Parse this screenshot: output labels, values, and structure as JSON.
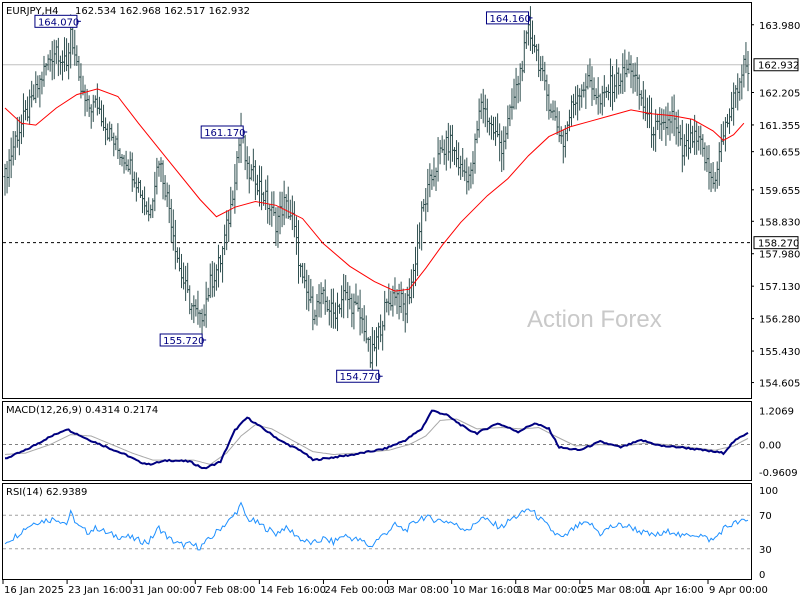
{
  "header": {
    "symbol": "EURJPY,H4",
    "ohlc": "162.534 162.968 162.517 162.932"
  },
  "watermark": "Action Forex",
  "chart_data": [
    {
      "type": "ohlc",
      "name": "price",
      "x_tick_labels": [
        "16 Jan 2025",
        "23 Jan 16:00",
        "31 Jan 00:00",
        "7 Feb 08:00",
        "14 Feb 16:00",
        "24 Feb 00:00",
        "3 Mar 08:00",
        "10 Mar 16:00",
        "18 Mar 00:00",
        "25 Mar 08:00",
        "1 Apr 16:00",
        "9 Apr 00:00"
      ],
      "y_ticks": [
        "163.980",
        "162.205",
        "161.355",
        "160.655",
        "159.655",
        "158.830",
        "157.980",
        "157.130",
        "156.280",
        "155.430",
        "154.605"
      ],
      "ylim": [
        154.2,
        164.55
      ],
      "current_price": "162.932",
      "reference_level": "158.270",
      "ma_path": [
        [
          0,
          161.8
        ],
        [
          8,
          161.4
        ],
        [
          15,
          161.35
        ],
        [
          25,
          161.8
        ],
        [
          35,
          162.15
        ],
        [
          45,
          162.3
        ],
        [
          55,
          162.1
        ],
        [
          65,
          161.4
        ],
        [
          80,
          160.4
        ],
        [
          95,
          159.4
        ],
        [
          103,
          158.95
        ],
        [
          112,
          159.2
        ],
        [
          122,
          159.35
        ],
        [
          132,
          159.25
        ],
        [
          145,
          158.9
        ],
        [
          155,
          158.25
        ],
        [
          168,
          157.65
        ],
        [
          180,
          157.25
        ],
        [
          190,
          157.0
        ],
        [
          197,
          157.05
        ],
        [
          205,
          157.6
        ],
        [
          213,
          158.2
        ],
        [
          222,
          158.8
        ],
        [
          235,
          159.5
        ],
        [
          245,
          159.95
        ],
        [
          255,
          160.55
        ],
        [
          265,
          161.05
        ],
        [
          275,
          161.3
        ],
        [
          285,
          161.45
        ],
        [
          295,
          161.6
        ],
        [
          305,
          161.75
        ],
        [
          315,
          161.65
        ],
        [
          325,
          161.6
        ],
        [
          335,
          161.5
        ],
        [
          345,
          161.2
        ],
        [
          350,
          160.95
        ],
        [
          355,
          161.1
        ],
        [
          360,
          161.4
        ]
      ],
      "bar_anchors": [
        [
          0,
          160.0
        ],
        [
          5,
          161.0
        ],
        [
          10,
          161.6
        ],
        [
          15,
          162.2
        ],
        [
          20,
          162.9
        ],
        [
          25,
          163.4
        ],
        [
          30,
          162.8
        ],
        [
          32,
          163.9
        ],
        [
          36,
          162.4
        ],
        [
          40,
          161.8
        ],
        [
          45,
          161.9
        ],
        [
          50,
          161.2
        ],
        [
          55,
          160.7
        ],
        [
          60,
          160.4
        ],
        [
          65,
          159.8
        ],
        [
          70,
          159.0
        ],
        [
          75,
          160.5
        ],
        [
          80,
          159.2
        ],
        [
          85,
          157.6
        ],
        [
          90,
          156.7
        ],
        [
          95,
          156.2
        ],
        [
          100,
          157.2
        ],
        [
          105,
          157.8
        ],
        [
          110,
          159.2
        ],
        [
          113,
          160.5
        ],
        [
          115,
          161.2
        ],
        [
          118,
          160.1
        ],
        [
          122,
          160.0
        ],
        [
          127,
          159.4
        ],
        [
          132,
          158.8
        ],
        [
          136,
          159.3
        ],
        [
          140,
          158.9
        ],
        [
          145,
          157.2
        ],
        [
          150,
          156.5
        ],
        [
          155,
          156.8
        ],
        [
          160,
          156.4
        ],
        [
          165,
          156.9
        ],
        [
          170,
          156.6
        ],
        [
          175,
          156.1
        ],
        [
          178,
          155.2
        ],
        [
          181,
          155.7
        ],
        [
          185,
          156.5
        ],
        [
          190,
          157.0
        ],
        [
          195,
          156.5
        ],
        [
          199,
          157.5
        ],
        [
          203,
          159.0
        ],
        [
          207,
          159.8
        ],
        [
          212,
          160.6
        ],
        [
          217,
          160.9
        ],
        [
          222,
          160.2
        ],
        [
          227,
          160.0
        ],
        [
          232,
          162.0
        ],
        [
          237,
          161.3
        ],
        [
          242,
          160.8
        ],
        [
          247,
          161.8
        ],
        [
          252,
          163.0
        ],
        [
          255,
          163.8
        ],
        [
          258,
          163.5
        ],
        [
          263,
          162.3
        ],
        [
          268,
          161.5
        ],
        [
          272,
          160.9
        ],
        [
          276,
          161.8
        ],
        [
          280,
          162.3
        ],
        [
          285,
          162.5
        ],
        [
          290,
          161.9
        ],
        [
          295,
          162.4
        ],
        [
          300,
          162.6
        ],
        [
          305,
          162.9
        ],
        [
          310,
          162.0
        ],
        [
          315,
          161.3
        ],
        [
          320,
          161.2
        ],
        [
          325,
          161.6
        ],
        [
          330,
          160.6
        ],
        [
          335,
          161.0
        ],
        [
          339,
          160.8
        ],
        [
          342,
          160.3
        ],
        [
          345,
          159.8
        ],
        [
          350,
          161.1
        ],
        [
          355,
          162.0
        ],
        [
          360,
          162.9
        ]
      ],
      "pivot_labels": [
        {
          "x": 37,
          "price": 164.07,
          "text": "164.070",
          "side": "left",
          "pos": "high"
        },
        {
          "x": 257,
          "price": 164.16,
          "text": "164.160",
          "side": "left",
          "pos": "high"
        },
        {
          "x": 118,
          "price": 161.17,
          "text": "161.170",
          "side": "left",
          "pos": "high"
        },
        {
          "x": 98,
          "price": 155.72,
          "text": "155.720",
          "side": "left",
          "pos": "low"
        },
        {
          "x": 184,
          "price": 154.77,
          "text": "154.770",
          "side": "left",
          "pos": "low"
        }
      ],
      "colors": {
        "bars": "#2f4f4f",
        "ma": "#ff0000",
        "grid": "#c0c0c0"
      }
    },
    {
      "type": "line",
      "name": "macd",
      "label": "MACD(12,26,9) 0.4314 0.2174",
      "y_ticks": [
        "1.2069",
        "0.00",
        "-0.9609"
      ],
      "ylim": [
        -1.25,
        1.5
      ],
      "main_anchors": [
        [
          0,
          -0.5
        ],
        [
          10,
          -0.2
        ],
        [
          20,
          0.2
        ],
        [
          30,
          0.55
        ],
        [
          40,
          0.2
        ],
        [
          50,
          -0.1
        ],
        [
          60,
          -0.4
        ],
        [
          65,
          -0.6
        ],
        [
          70,
          -0.7
        ],
        [
          80,
          -0.55
        ],
        [
          90,
          -0.6
        ],
        [
          97,
          -0.85
        ],
        [
          105,
          -0.6
        ],
        [
          112,
          0.5
        ],
        [
          118,
          0.95
        ],
        [
          125,
          0.6
        ],
        [
          135,
          0.1
        ],
        [
          145,
          -0.25
        ],
        [
          150,
          -0.55
        ],
        [
          160,
          -0.45
        ],
        [
          170,
          -0.35
        ],
        [
          185,
          -0.15
        ],
        [
          195,
          0.15
        ],
        [
          203,
          0.55
        ],
        [
          208,
          1.2
        ],
        [
          215,
          1.05
        ],
        [
          225,
          0.55
        ],
        [
          230,
          0.4
        ],
        [
          240,
          0.75
        ],
        [
          250,
          0.45
        ],
        [
          258,
          0.75
        ],
        [
          265,
          0.55
        ],
        [
          270,
          -0.1
        ],
        [
          280,
          -0.2
        ],
        [
          290,
          0.1
        ],
        [
          300,
          -0.1
        ],
        [
          310,
          0.15
        ],
        [
          320,
          -0.05
        ],
        [
          330,
          -0.1
        ],
        [
          340,
          -0.2
        ],
        [
          350,
          -0.3
        ],
        [
          355,
          0.1
        ],
        [
          362,
          0.4314
        ]
      ],
      "signal_anchors": [
        [
          0,
          -0.35
        ],
        [
          10,
          -0.3
        ],
        [
          22,
          0.0
        ],
        [
          32,
          0.35
        ],
        [
          42,
          0.3
        ],
        [
          52,
          0.0
        ],
        [
          62,
          -0.3
        ],
        [
          72,
          -0.55
        ],
        [
          82,
          -0.55
        ],
        [
          92,
          -0.55
        ],
        [
          100,
          -0.7
        ],
        [
          108,
          -0.3
        ],
        [
          115,
          0.3
        ],
        [
          122,
          0.7
        ],
        [
          130,
          0.55
        ],
        [
          140,
          0.15
        ],
        [
          150,
          -0.25
        ],
        [
          160,
          -0.35
        ],
        [
          172,
          -0.3
        ],
        [
          187,
          -0.2
        ],
        [
          197,
          0.0
        ],
        [
          205,
          0.3
        ],
        [
          212,
          0.85
        ],
        [
          220,
          0.9
        ],
        [
          230,
          0.55
        ],
        [
          242,
          0.6
        ],
        [
          252,
          0.55
        ],
        [
          260,
          0.6
        ],
        [
          268,
          0.3
        ],
        [
          278,
          -0.05
        ],
        [
          290,
          0.0
        ],
        [
          302,
          -0.05
        ],
        [
          312,
          0.05
        ],
        [
          322,
          0.0
        ],
        [
          334,
          -0.1
        ],
        [
          346,
          -0.2
        ],
        [
          355,
          -0.05
        ],
        [
          362,
          0.2174
        ]
      ],
      "colors": {
        "main": "#000080",
        "signal": "#a9a9a9"
      }
    },
    {
      "type": "line",
      "name": "rsi",
      "label": "RSI(14) 62.9389",
      "y_ticks": [
        "100",
        "70",
        "30",
        "0"
      ],
      "ylim": [
        0,
        100
      ],
      "levels": [
        70,
        30
      ],
      "anchors": [
        [
          0,
          38
        ],
        [
          5,
          45
        ],
        [
          10,
          55
        ],
        [
          15,
          62
        ],
        [
          20,
          64
        ],
        [
          25,
          66
        ],
        [
          30,
          60
        ],
        [
          32,
          72
        ],
        [
          36,
          56
        ],
        [
          40,
          50
        ],
        [
          45,
          55
        ],
        [
          50,
          48
        ],
        [
          55,
          45
        ],
        [
          60,
          44
        ],
        [
          65,
          40
        ],
        [
          70,
          38
        ],
        [
          75,
          55
        ],
        [
          80,
          42
        ],
        [
          85,
          35
        ],
        [
          90,
          35
        ],
        [
          95,
          32
        ],
        [
          100,
          42
        ],
        [
          105,
          55
        ],
        [
          110,
          65
        ],
        [
          113,
          75
        ],
        [
          115,
          82
        ],
        [
          118,
          66
        ],
        [
          122,
          62
        ],
        [
          127,
          55
        ],
        [
          132,
          48
        ],
        [
          136,
          55
        ],
        [
          140,
          50
        ],
        [
          145,
          40
        ],
        [
          150,
          36
        ],
        [
          155,
          42
        ],
        [
          160,
          38
        ],
        [
          165,
          46
        ],
        [
          170,
          42
        ],
        [
          175,
          38
        ],
        [
          178,
          32
        ],
        [
          181,
          40
        ],
        [
          185,
          48
        ],
        [
          190,
          58
        ],
        [
          195,
          52
        ],
        [
          199,
          60
        ],
        [
          203,
          68
        ],
        [
          207,
          66
        ],
        [
          212,
          64
        ],
        [
          217,
          62
        ],
        [
          222,
          55
        ],
        [
          227,
          54
        ],
        [
          232,
          68
        ],
        [
          237,
          60
        ],
        [
          242,
          56
        ],
        [
          247,
          66
        ],
        [
          252,
          72
        ],
        [
          255,
          78
        ],
        [
          258,
          72
        ],
        [
          263,
          60
        ],
        [
          268,
          48
        ],
        [
          272,
          42
        ],
        [
          276,
          52
        ],
        [
          280,
          58
        ],
        [
          285,
          60
        ],
        [
          290,
          48
        ],
        [
          295,
          56
        ],
        [
          300,
          58
        ],
        [
          305,
          56
        ],
        [
          310,
          50
        ],
        [
          315,
          46
        ],
        [
          320,
          47
        ],
        [
          325,
          52
        ],
        [
          330,
          44
        ],
        [
          335,
          48
        ],
        [
          339,
          46
        ],
        [
          342,
          42
        ],
        [
          345,
          40
        ],
        [
          350,
          54
        ],
        [
          355,
          60
        ],
        [
          360,
          62.9389
        ]
      ],
      "colors": {
        "line": "#1e90ff",
        "levels": "#a0a0a0"
      }
    }
  ]
}
